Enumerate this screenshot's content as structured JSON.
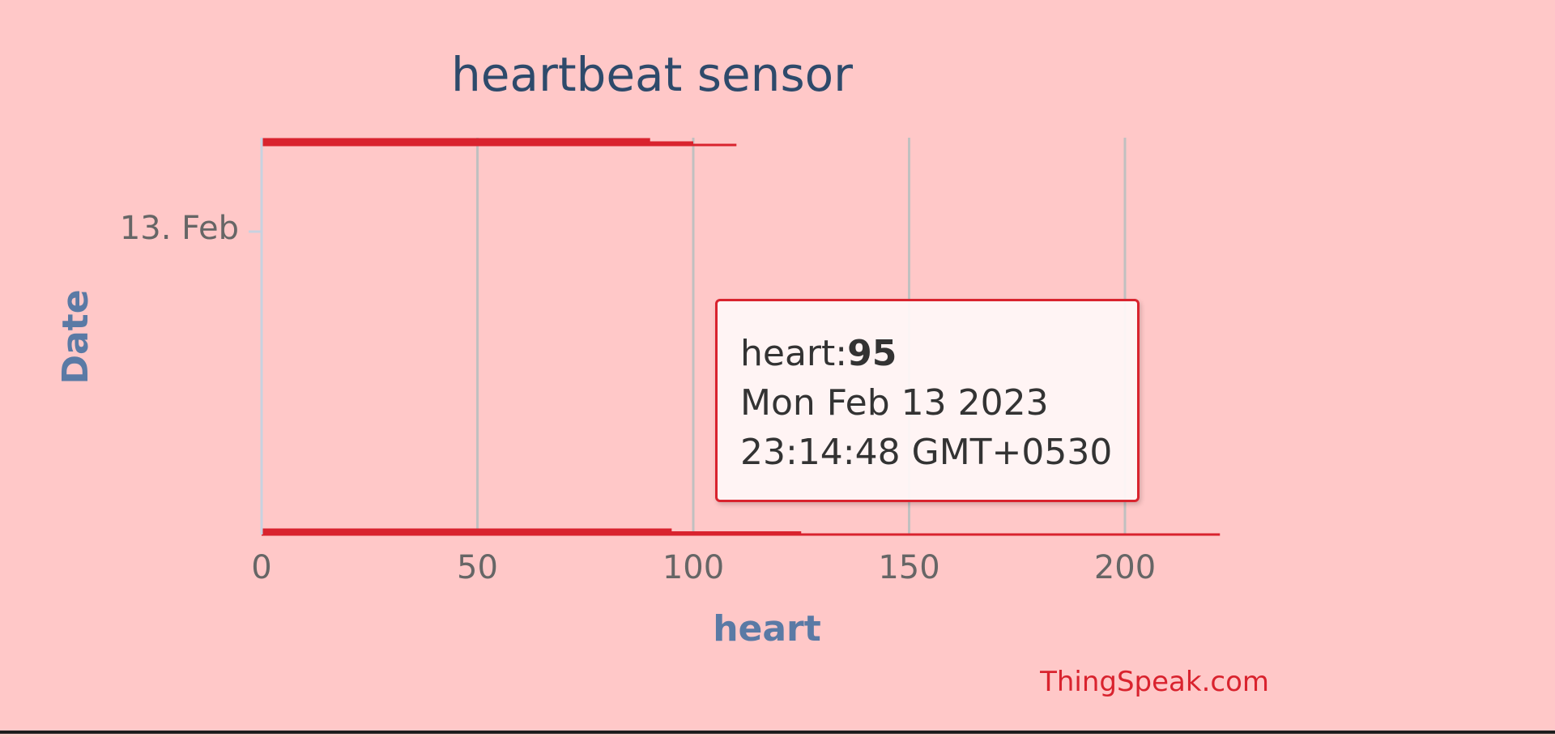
{
  "chart_data": {
    "type": "bar",
    "title": "heartbeat sensor",
    "xlabel": "heart",
    "ylabel": "Date",
    "orientation": "horizontal",
    "xlim": [
      0,
      225
    ],
    "xticks": [
      "0",
      "50",
      "100",
      "150",
      "200"
    ],
    "xtick_values": [
      0,
      50,
      100,
      150,
      200
    ],
    "ytick_labels": [
      "13. Feb"
    ],
    "grid": true,
    "series": [
      {
        "values": [
          {
            "x": 90
          },
          {
            "x": 100
          },
          {
            "x": 110
          }
        ]
      },
      {
        "values": [
          {
            "x": 95
          },
          {
            "x": 125
          },
          {
            "x": 222
          }
        ]
      }
    ],
    "tooltip": {
      "series_label": "heart:",
      "value": "95",
      "date_line1": "Mon Feb 13 2023",
      "date_line2": "23:14:48 GMT+0530"
    },
    "credit": "ThingSpeak.com",
    "colors": {
      "background": "#ffc8c8",
      "bar": "#d9232e",
      "title": "#2e4a6b",
      "axis_title": "#5a7aa5",
      "tick_label": "#666666",
      "grid": "#c0c0c0",
      "credit": "#d9232e"
    }
  }
}
